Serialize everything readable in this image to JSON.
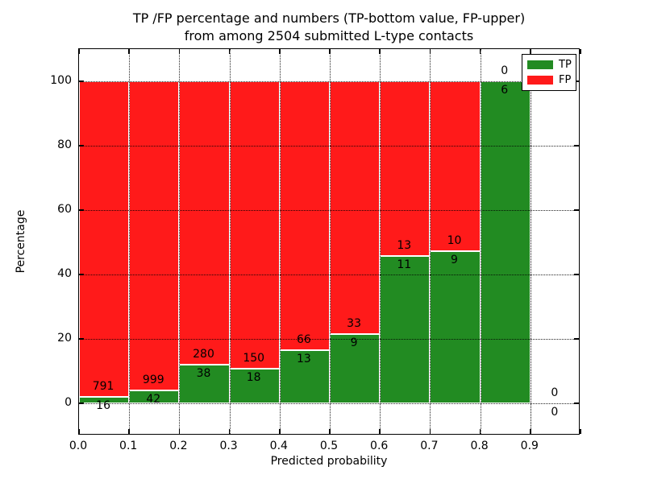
{
  "title": {
    "line1": "TP /FP percentage and numbers (TP-bottom value, FP-upper)",
    "line2": "from among 2504 submitted L-type contacts"
  },
  "axes": {
    "xlabel": "Predicted probability",
    "ylabel": "Percentage",
    "x_tick_labels": [
      "0.0",
      "0.1",
      "0.2",
      "0.3",
      "0.4",
      "0.5",
      "0.6",
      "0.7",
      "0.8",
      "0.9"
    ],
    "y_tick_labels": [
      "0",
      "20",
      "40",
      "60",
      "80",
      "100"
    ],
    "y_tick_values": [
      0,
      20,
      40,
      60,
      80,
      100
    ],
    "xlim": [
      0.0,
      1.0
    ],
    "ylim": [
      -10,
      110
    ],
    "grid": "dotted, drawn above bars"
  },
  "legend": {
    "position": "upper right",
    "items": [
      {
        "label": "TP",
        "color": "#228b22"
      },
      {
        "label": "FP",
        "color": "#ff1a1a"
      }
    ]
  },
  "colors": {
    "tp": "#228b22",
    "fp": "#ff1a1a",
    "bar_edge": "#ffffff",
    "grid": "#000000"
  },
  "chart_data": {
    "type": "bar",
    "stacked": true,
    "normalized_to_percent": 100,
    "title": "TP /FP percentage and numbers (TP-bottom value, FP-upper) from among 2504 submitted L-type contacts",
    "xlabel": "Predicted probability",
    "ylabel": "Percentage",
    "bin_width": 0.1,
    "bin_starts": [
      0.0,
      0.1,
      0.2,
      0.3,
      0.4,
      0.5,
      0.6,
      0.7,
      0.8,
      0.9
    ],
    "series": [
      {
        "name": "TP",
        "color": "#228b22",
        "counts": [
          16,
          42,
          38,
          18,
          13,
          9,
          11,
          9,
          6,
          0
        ]
      },
      {
        "name": "FP",
        "color": "#ff1a1a",
        "counts": [
          791,
          999,
          280,
          150,
          66,
          33,
          13,
          10,
          0,
          0
        ]
      }
    ],
    "tp_percent_of_bin": [
      1.98,
      4.03,
      11.95,
      10.71,
      16.46,
      21.43,
      45.83,
      47.37,
      100.0,
      null
    ],
    "total_submitted": 2504,
    "note_from_title": "TP count printed below segment boundary, FP count printed above it; empty last bin shows 0 / 0"
  }
}
